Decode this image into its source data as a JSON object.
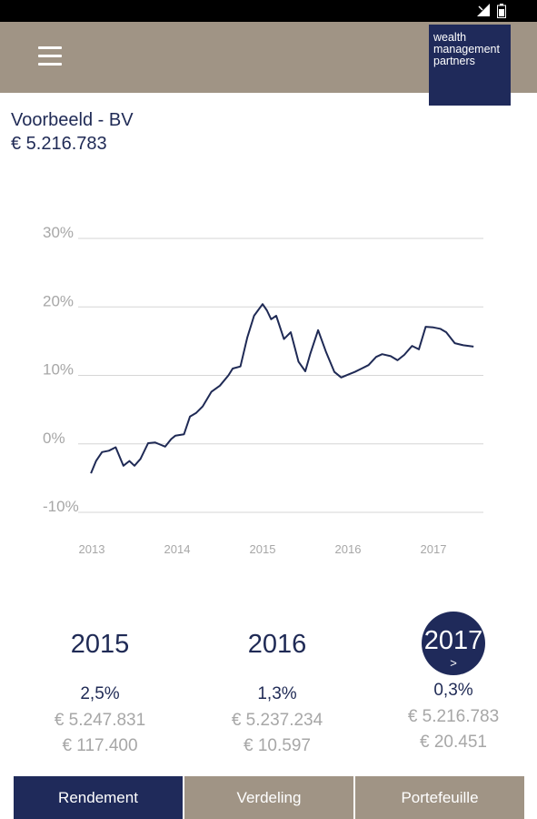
{
  "header": {
    "logo_lines": [
      "wealth",
      "management",
      "partners"
    ]
  },
  "account": {
    "name": "Voorbeeld - BV",
    "value": "€ 5.216.783"
  },
  "chart_data": {
    "type": "line",
    "x_tick_labels": [
      "2013",
      "2014",
      "2015",
      "2016",
      "2017"
    ],
    "y_tick_labels": [
      "30%",
      "20%",
      "10%",
      "0%",
      "-10%"
    ],
    "ylim": [
      -10,
      30
    ],
    "xlim": [
      2013,
      2017.5
    ],
    "grid": true,
    "series": [
      {
        "color": "#1f2a55",
        "points": [
          [
            2012.99,
            -4.3
          ],
          [
            2013.05,
            -2.5
          ],
          [
            2013.12,
            -1.2
          ],
          [
            2013.2,
            -1.0
          ],
          [
            2013.28,
            -0.5
          ],
          [
            2013.37,
            -3.2
          ],
          [
            2013.44,
            -2.5
          ],
          [
            2013.5,
            -3.2
          ],
          [
            2013.57,
            -2.2
          ],
          [
            2013.66,
            0.1
          ],
          [
            2013.74,
            0.2
          ],
          [
            2013.8,
            -0.1
          ],
          [
            2013.86,
            -0.4
          ],
          [
            2013.93,
            0.7
          ],
          [
            2013.98,
            1.2
          ],
          [
            2014.08,
            1.4
          ],
          [
            2014.15,
            4.0
          ],
          [
            2014.22,
            4.5
          ],
          [
            2014.3,
            5.5
          ],
          [
            2014.4,
            7.6
          ],
          [
            2014.5,
            8.5
          ],
          [
            2014.6,
            10.0
          ],
          [
            2014.65,
            11.0
          ],
          [
            2014.74,
            11.3
          ],
          [
            2014.82,
            15.5
          ],
          [
            2014.9,
            18.7
          ],
          [
            2015.0,
            20.4
          ],
          [
            2015.05,
            19.5
          ],
          [
            2015.1,
            18.2
          ],
          [
            2015.16,
            18.7
          ],
          [
            2015.25,
            15.3
          ],
          [
            2015.33,
            16.3
          ],
          [
            2015.42,
            12.0
          ],
          [
            2015.5,
            10.6
          ],
          [
            2015.56,
            13.2
          ],
          [
            2015.65,
            16.6
          ],
          [
            2015.74,
            13.5
          ],
          [
            2015.84,
            10.5
          ],
          [
            2015.92,
            9.7
          ],
          [
            2016.0,
            10.1
          ],
          [
            2016.08,
            10.5
          ],
          [
            2016.16,
            11.0
          ],
          [
            2016.24,
            11.5
          ],
          [
            2016.33,
            12.7
          ],
          [
            2016.4,
            13.1
          ],
          [
            2016.5,
            12.8
          ],
          [
            2016.58,
            12.2
          ],
          [
            2016.66,
            13.0
          ],
          [
            2016.75,
            14.3
          ],
          [
            2016.83,
            13.8
          ],
          [
            2016.91,
            17.1
          ],
          [
            2017.0,
            17.0
          ],
          [
            2017.08,
            16.8
          ],
          [
            2017.15,
            16.3
          ],
          [
            2017.25,
            14.7
          ],
          [
            2017.35,
            14.4
          ],
          [
            2017.47,
            14.2
          ]
        ]
      }
    ]
  },
  "years": [
    {
      "year": "2015",
      "return": "2,5%",
      "value": "€ 5.247.831",
      "gain": "€ 117.400"
    },
    {
      "year": "2016",
      "return": "1,3%",
      "value": "€ 5.237.234",
      "gain": "€ 10.597"
    },
    {
      "year": "2017",
      "arrow": ">",
      "return": "0,3%",
      "value": "€ 5.216.783",
      "gain": "€ 20.451",
      "selected": true
    }
  ],
  "tabs": [
    {
      "label": "Rendement",
      "active": true
    },
    {
      "label": "Verdeling",
      "active": false
    },
    {
      "label": "Portefeuille",
      "active": false
    }
  ],
  "colors": {
    "navy": "#1f2a5a",
    "taupe": "#a09485",
    "grey_text": "#a7a7a7",
    "grid": "#d6d6d6"
  },
  "icons": [
    "signal-icon",
    "battery-icon",
    "menu-icon"
  ]
}
